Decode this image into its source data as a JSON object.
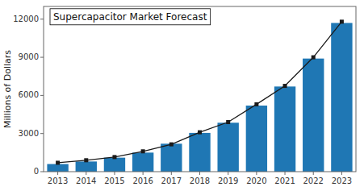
{
  "chart_data": {
    "type": "bar",
    "title": "Supercapacitor Market Forecast",
    "y_label": "Millions of Dollars",
    "categories": [
      "2013",
      "2014",
      "2015",
      "2016",
      "2017",
      "2018",
      "2019",
      "2020",
      "2021",
      "2022",
      "2023"
    ],
    "series": [
      {
        "type": "bar",
        "color": "#1F77B4",
        "values": [
          600,
          800,
          1100,
          1500,
          2200,
          3050,
          3850,
          5200,
          6700,
          8900,
          11700
        ]
      },
      {
        "type": "line",
        "color": "#1a1a1a",
        "marker": "square",
        "line_style": "solid",
        "values": [
          700,
          900,
          1150,
          1600,
          2150,
          3100,
          3900,
          5300,
          6750,
          9000,
          11800
        ]
      }
    ],
    "ylim": [
      0,
      13000
    ],
    "yticks": [
      0,
      3000,
      6000,
      9000,
      12000
    ],
    "grid": false
  }
}
